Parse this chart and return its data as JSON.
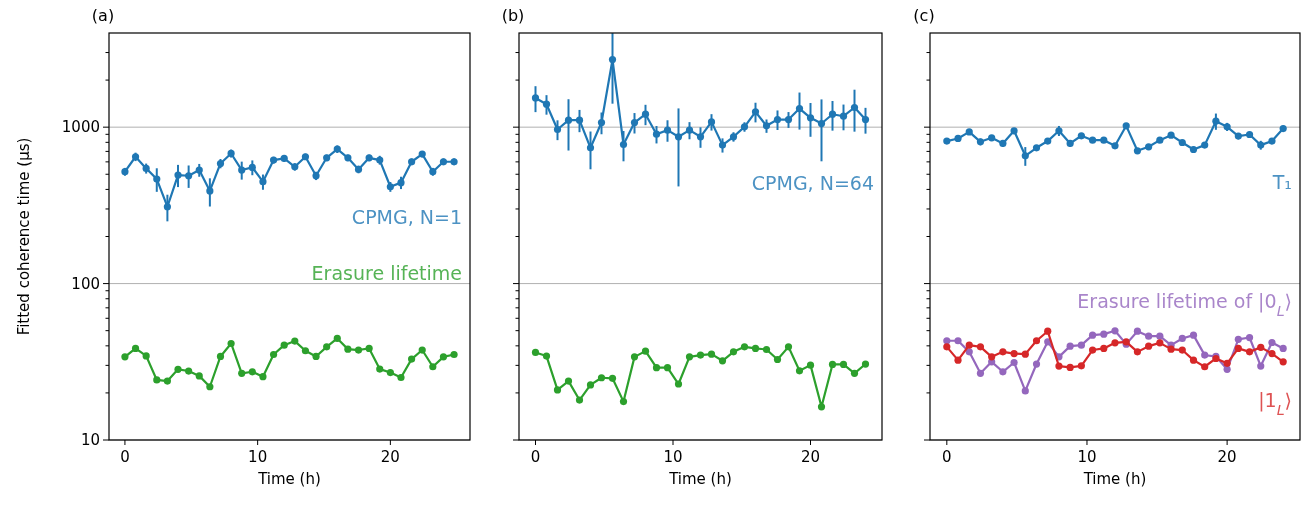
{
  "chart_data": [
    {
      "type": "line",
      "title": "(a)",
      "xlabel": "Time (h)",
      "ylabel": "Fitted coherence time (µs)",
      "log": "y",
      "grid": "y",
      "marker": "circle",
      "xlim": [
        -1.2,
        26
      ],
      "xticks": [
        0,
        10,
        20
      ],
      "ylim": [
        10,
        4000
      ],
      "yticks": [
        10,
        {
          "value": 20,
          "label": null
        },
        {
          "value": 30,
          "label": null
        },
        {
          "value": 40,
          "label": null
        },
        {
          "value": 50,
          "label": null
        },
        {
          "value": 60,
          "label": null
        },
        {
          "value": 70,
          "label": null
        },
        {
          "value": 80,
          "label": null
        },
        {
          "value": 90,
          "label": null
        },
        100,
        {
          "value": 200,
          "label": null
        },
        {
          "value": 300,
          "label": null
        },
        {
          "value": 400,
          "label": null
        },
        {
          "value": 500,
          "label": null
        },
        {
          "value": 600,
          "label": null
        },
        {
          "value": 700,
          "label": null
        },
        {
          "value": 800,
          "label": null
        },
        {
          "value": 900,
          "label": null
        },
        1000,
        {
          "value": 2000,
          "label": null
        },
        {
          "value": 3000,
          "label": null
        }
      ],
      "x": [
        0,
        0.8,
        1.6,
        2.4,
        3.2,
        4,
        4.8,
        5.6,
        6.4,
        7.2,
        8,
        8.8,
        9.6,
        10.4,
        11.2,
        12,
        12.8,
        13.6,
        14.4,
        15.2,
        16,
        16.8,
        17.6,
        18.4,
        19.2,
        20,
        20.8,
        21.6,
        22.4,
        23.2,
        24,
        24.8
      ],
      "series": [
        {
          "name": "CPMG, N=1",
          "color": "#1f77b4",
          "values": [
            519,
            647,
            545,
            466,
            310,
            494,
            489,
            532,
            391,
            586,
            679,
            532,
            553,
            448,
            616,
            631,
            558,
            647,
            489,
            637,
            724,
            637,
            537,
            637,
            616,
            416,
            442,
            601,
            673,
            519,
            601,
            601
          ],
          "errors": [
            30,
            40,
            40,
            80,
            60,
            80,
            80,
            50,
            80,
            40,
            40,
            70,
            60,
            50,
            30,
            30,
            30,
            30,
            30,
            30,
            40,
            30,
            30,
            30,
            40,
            30,
            40,
            30,
            30,
            30,
            30,
            30
          ]
        },
        {
          "name": "Erasure lifetime",
          "color": "#2ca02c",
          "values": [
            34.0,
            38.5,
            34.5,
            24.2,
            23.8,
            28.3,
            27.6,
            25.7,
            21.9,
            34.2,
            41.4,
            26.7,
            27.3,
            25.4,
            35.2,
            40.4,
            42.9,
            37.2,
            34.2,
            39.4,
            44.6,
            38.1,
            37.6,
            38.5,
            28.4,
            27.0,
            25.1,
            32.9,
            37.6,
            29.4,
            34.0,
            35.2
          ]
        }
      ]
    },
    {
      "type": "line",
      "title": "(b)",
      "xlabel": "Time (h)",
      "log": "y",
      "grid": "y",
      "marker": "circle",
      "tick_labels": "x",
      "xlim": [
        -1.2,
        25.2
      ],
      "xticks": [
        0,
        10,
        20
      ],
      "ylim": [
        10,
        4000
      ],
      "yticks": [
        10,
        {
          "value": 20,
          "label": null
        },
        {
          "value": 30,
          "label": null
        },
        {
          "value": 40,
          "label": null
        },
        {
          "value": 50,
          "label": null
        },
        {
          "value": 60,
          "label": null
        },
        {
          "value": 70,
          "label": null
        },
        {
          "value": 80,
          "label": null
        },
        {
          "value": 90,
          "label": null
        },
        100,
        {
          "value": 200,
          "label": null
        },
        {
          "value": 300,
          "label": null
        },
        {
          "value": 400,
          "label": null
        },
        {
          "value": 500,
          "label": null
        },
        {
          "value": 600,
          "label": null
        },
        {
          "value": 700,
          "label": null
        },
        {
          "value": 800,
          "label": null
        },
        {
          "value": 900,
          "label": null
        },
        1000,
        {
          "value": 2000,
          "label": null
        },
        {
          "value": 3000,
          "label": null
        }
      ],
      "x": [
        0,
        0.8,
        1.6,
        2.4,
        3.2,
        4,
        4.8,
        5.6,
        6.4,
        7.2,
        8,
        8.8,
        9.6,
        10.4,
        11.2,
        12,
        12.8,
        13.6,
        14.4,
        15.2,
        16,
        16.8,
        17.6,
        18.4,
        19.2,
        20,
        20.8,
        21.6,
        22.4,
        23.2,
        24
      ],
      "series": [
        {
          "name": "CPMG, N=64",
          "color": "#1f77b4",
          "values": [
            1538,
            1402,
            966,
            1109,
            1109,
            738,
            1071,
            2703,
            775,
            1071,
            1210,
            902,
            957,
            868,
            957,
            868,
            1081,
            768,
            868,
            1005,
            1253,
            1020,
            1119,
            1119,
            1315,
            1148,
            1055,
            1210,
            1175,
            1336,
            1119
          ],
          "errors": [
            290,
            200,
            140,
            400,
            180,
            200,
            170,
            1290,
            170,
            160,
            180,
            115,
            150,
            450,
            120,
            130,
            130,
            80,
            60,
            70,
            180,
            100,
            160,
            130,
            350,
            280,
            450,
            260,
            220,
            400,
            210
          ]
        },
        {
          "color": "#2ca02c",
          "values": [
            36.3,
            34.4,
            20.9,
            23.8,
            18.0,
            22.5,
            25.0,
            24.8,
            17.6,
            34.0,
            37.0,
            29.0,
            29.0,
            22.8,
            34.0,
            34.9,
            35.4,
            32.1,
            36.6,
            39.4,
            38.5,
            37.9,
            32.7,
            39.4,
            27.7,
            30.1,
            16.3,
            30.4,
            30.4,
            26.7,
            30.6
          ]
        }
      ]
    },
    {
      "type": "line",
      "title": "(c)",
      "xlabel": "Time (h)",
      "log": "y",
      "grid": "y",
      "marker": "circle",
      "tick_labels": "x",
      "xlim": [
        -1.2,
        25.2
      ],
      "xticks": [
        0,
        10,
        20
      ],
      "ylim": [
        10,
        4000
      ],
      "yticks": [
        10,
        {
          "value": 20,
          "label": null
        },
        {
          "value": 30,
          "label": null
        },
        {
          "value": 40,
          "label": null
        },
        {
          "value": 50,
          "label": null
        },
        {
          "value": 60,
          "label": null
        },
        {
          "value": 70,
          "label": null
        },
        {
          "value": 80,
          "label": null
        },
        {
          "value": 90,
          "label": null
        },
        100,
        {
          "value": 200,
          "label": null
        },
        {
          "value": 300,
          "label": null
        },
        {
          "value": 400,
          "label": null
        },
        {
          "value": 500,
          "label": null
        },
        {
          "value": 600,
          "label": null
        },
        {
          "value": 700,
          "label": null
        },
        {
          "value": 800,
          "label": null
        },
        {
          "value": 900,
          "label": null
        },
        1000,
        {
          "value": 2000,
          "label": null
        },
        {
          "value": 3000,
          "label": null
        }
      ],
      "x": [
        0,
        0.8,
        1.6,
        2.4,
        3.2,
        4,
        4.8,
        5.6,
        6.4,
        7.2,
        8,
        8.8,
        9.6,
        10.4,
        11.2,
        12,
        12.8,
        13.6,
        14.4,
        15.2,
        16,
        16.8,
        17.6,
        18.4,
        19.2,
        20,
        20.8,
        21.6,
        22.4,
        23.2,
        24
      ],
      "series": [
        {
          "name": "T₁",
          "color": "#1f77b4",
          "values": [
            815,
            847,
            933,
            806,
            855,
            787,
            948,
            656,
            738,
            815,
            948,
            787,
            881,
            826,
            826,
            760,
            1020,
            706,
            749,
            826,
            889,
            798,
            720,
            768,
            1092,
            1005,
            877,
            898,
            768,
            815,
            980
          ],
          "errors": [
            30,
            30,
            30,
            40,
            30,
            40,
            40,
            90,
            30,
            30,
            70,
            40,
            30,
            30,
            30,
            30,
            40,
            30,
            30,
            30,
            30,
            30,
            30,
            30,
            130,
            60,
            40,
            30,
            50,
            30,
            40
          ]
        },
        {
          "name": "Erasure lifetime of |0$_{L}$⟩",
          "color": "#9467bd",
          "values": [
            43.1,
            43.1,
            36.6,
            26.7,
            31.6,
            27.3,
            31.3,
            20.6,
            30.6,
            42.4,
            34.0,
            39.8,
            40.4,
            46.8,
            47.5,
            49.9,
            41.0,
            49.6,
            46.1,
            46.1,
            40.4,
            44.6,
            46.8,
            34.9,
            34.2,
            28.3,
            44.0,
            45.2,
            29.7,
            42.0,
            38.5
          ]
        },
        {
          "name": "|1$_{L}$⟩",
          "color": "#d62728",
          "values": [
            39.4,
            32.4,
            40.4,
            39.4,
            34.0,
            36.6,
            35.7,
            35.4,
            43.1,
            49.6,
            29.7,
            29.1,
            29.8,
            37.6,
            38.5,
            41.8,
            42.4,
            36.6,
            39.8,
            41.8,
            38.1,
            37.6,
            32.4,
            29.4,
            33.2,
            30.9,
            38.5,
            36.6,
            39.1,
            35.7,
            31.6
          ]
        }
      ]
    }
  ]
}
